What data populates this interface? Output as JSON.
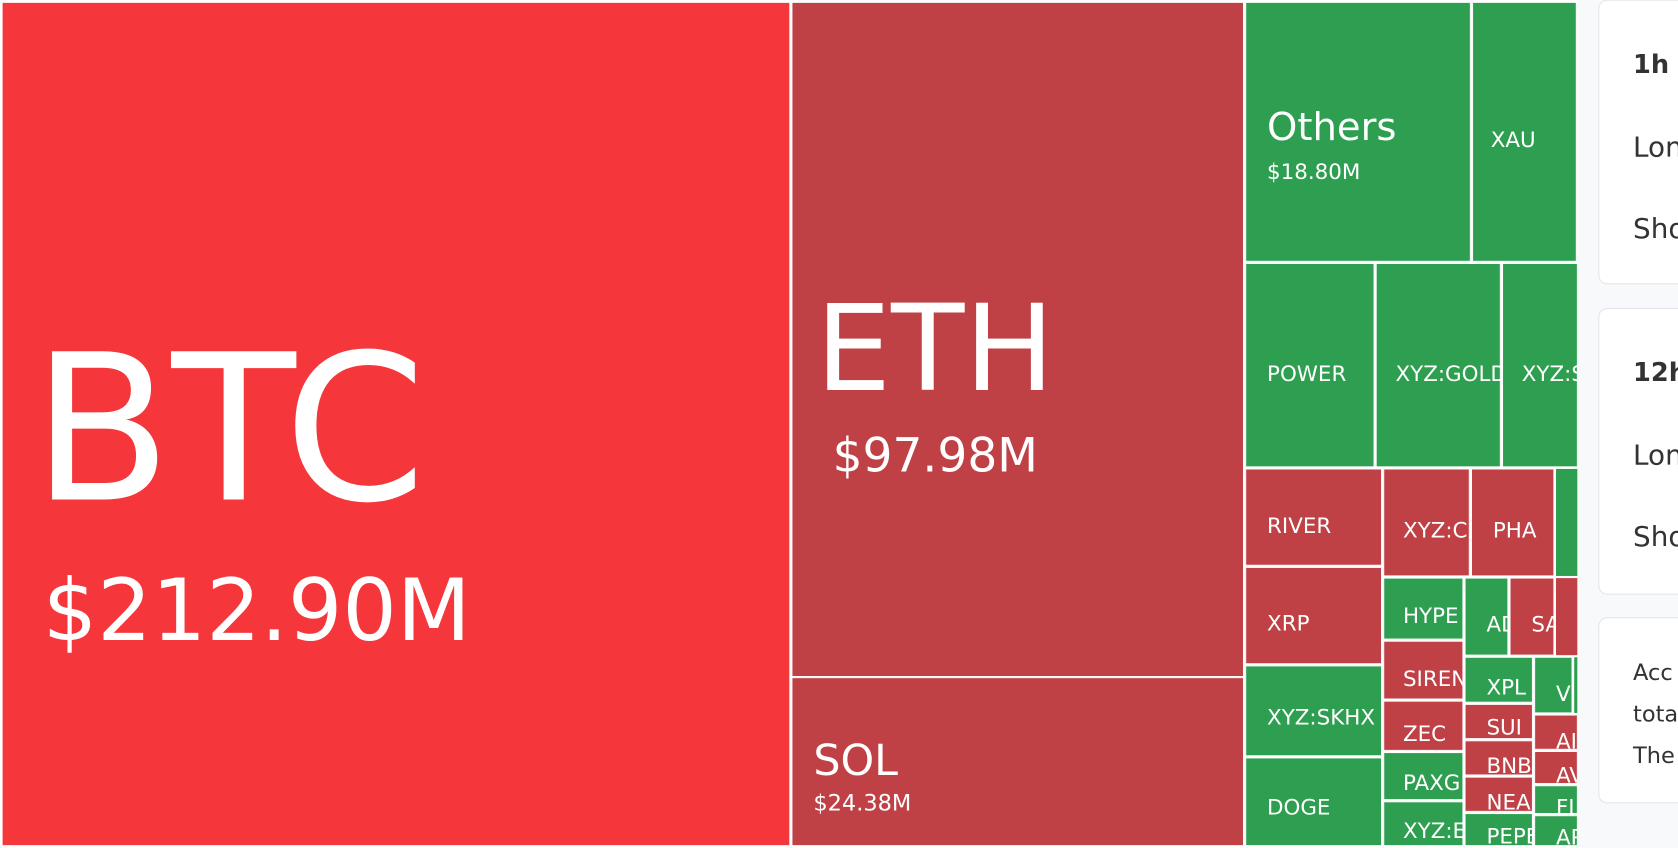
{
  "treemap": {
    "tiles": [
      {
        "label": "BTC",
        "value_label": "$212.90M",
        "color": "#f5363a"
      },
      {
        "label": "ETH",
        "value_label": "$97.98M",
        "color": "#bf4045"
      },
      {
        "label": "SOL",
        "value_label": "$24.38M",
        "color": "#bf4045"
      },
      {
        "label": "Others",
        "value_label": "$18.80M",
        "color": "#2e9f50"
      },
      {
        "label": "XAU",
        "color": "#2e9f50"
      },
      {
        "label": "POWER",
        "color": "#2e9f50"
      },
      {
        "label": "XYZ:GOLD",
        "color": "#2e9f50"
      },
      {
        "label": "XYZ:S",
        "color": "#2e9f50"
      },
      {
        "label": "RIVER",
        "color": "#bf4045"
      },
      {
        "label": "XYZ:C",
        "color": "#bf4045"
      },
      {
        "label": "PHA",
        "color": "#bf4045"
      },
      {
        "label": "XRP",
        "color": "#bf4045"
      },
      {
        "label": "HYPE",
        "color": "#2e9f50"
      },
      {
        "label": "AD",
        "color": "#2e9f50"
      },
      {
        "label": "SA",
        "color": "#bf4045"
      },
      {
        "label": "XYZ:SKHX",
        "color": "#2e9f50"
      },
      {
        "label": "SIREN",
        "color": "#bf4045"
      },
      {
        "label": "ZEC",
        "color": "#bf4045"
      },
      {
        "label": "PAXG",
        "color": "#2e9f50"
      },
      {
        "label": "XYZ:E",
        "color": "#2e9f50"
      },
      {
        "label": "DOGE",
        "color": "#2e9f50"
      },
      {
        "label": "XPL",
        "color": "#2e9f50"
      },
      {
        "label": "V",
        "color": "#2e9f50"
      },
      {
        "label": "SUI",
        "color": "#bf4045"
      },
      {
        "label": "AI",
        "color": "#bf4045"
      },
      {
        "label": "BNB",
        "color": "#bf4045"
      },
      {
        "label": "AV",
        "color": "#bf4045"
      },
      {
        "label": "NEA",
        "color": "#bf4045"
      },
      {
        "label": "FI",
        "color": "#2e9f50"
      },
      {
        "label": "PEPE",
        "color": "#2e9f50"
      },
      {
        "label": "AP",
        "color": "#2e9f50"
      }
    ]
  },
  "side_panel": {
    "cards": [
      {
        "title": "1h",
        "lines": [
          "Lon",
          "Sho"
        ]
      },
      {
        "title": "12h",
        "lines": [
          "Lon",
          "Sho"
        ]
      },
      {
        "lines": [
          "Acc",
          "tota",
          "The"
        ]
      }
    ]
  }
}
